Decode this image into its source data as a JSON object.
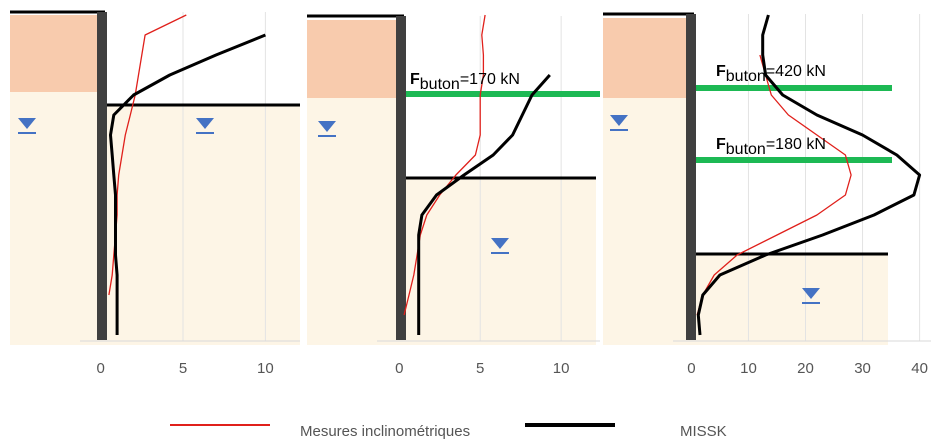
{
  "chart_data": [
    {
      "type": "line",
      "xlim": [
        -5.5,
        12.1
      ],
      "xticks": [
        0,
        5,
        10
      ],
      "grid": true,
      "series": [
        {
          "name": "Mesures inclinométriques",
          "color": "#e0201b",
          "values": [
            5.2,
            2.7,
            2.5,
            2.3,
            2.1,
            1.8,
            1.5,
            1.3,
            1.1,
            1,
            1,
            0.9,
            0.8,
            0.7,
            0.5,
            null,
            null
          ]
        },
        {
          "name": "MISSK",
          "color": "#000000",
          "values": [
            null,
            10,
            7,
            4.2,
            2,
            0.8,
            0.6,
            0.7,
            0.8,
            0.9,
            0.9,
            0.9,
            0.9,
            1,
            1,
            1,
            1
          ]
        }
      ],
      "annotations": []
    },
    {
      "type": "line",
      "xlim": [
        -5.7,
        12.4
      ],
      "xticks": [
        0,
        5,
        10
      ],
      "grid": true,
      "series": [
        {
          "color": "#e0201b",
          "values": [
            5.3,
            5.1,
            5.2,
            5.2,
            5,
            5,
            5,
            4.7,
            3.5,
            2.5,
            1.7,
            1.3,
            1.1,
            0.9,
            0.6,
            0.3,
            null
          ]
        },
        {
          "color": "#000000",
          "values": [
            null,
            null,
            null,
            9.3,
            8.2,
            7.6,
            7,
            5.8,
            4,
            2.3,
            1.4,
            1.2,
            1.2,
            1.2,
            1.2,
            1.2,
            1.2
          ]
        }
      ],
      "annotations": [
        {
          "symbol": "F",
          "subscript": "buton",
          "text": "=170 kN"
        }
      ]
    },
    {
      "type": "line",
      "xlim": [
        -15.5,
        42
      ],
      "xticks": [
        0,
        10,
        20,
        30,
        40
      ],
      "grid": true,
      "series": [
        {
          "color": "#e0201b",
          "values": [
            null,
            null,
            12,
            13,
            14,
            17,
            22,
            27,
            28,
            27,
            22,
            15,
            8,
            4,
            2,
            1,
            null
          ]
        },
        {
          "color": "#000000",
          "values": [
            13.5,
            12.5,
            12.5,
            13,
            16,
            22,
            30,
            36,
            40,
            39,
            32,
            23,
            13,
            5,
            2,
            1.2,
            1.5
          ]
        }
      ],
      "annotations": [
        {
          "symbol": "F",
          "subscript": "buton",
          "text": "=420 kN"
        },
        {
          "symbol": "F",
          "subscript": "buton",
          "text": "=180 kN"
        }
      ]
    }
  ]
}
